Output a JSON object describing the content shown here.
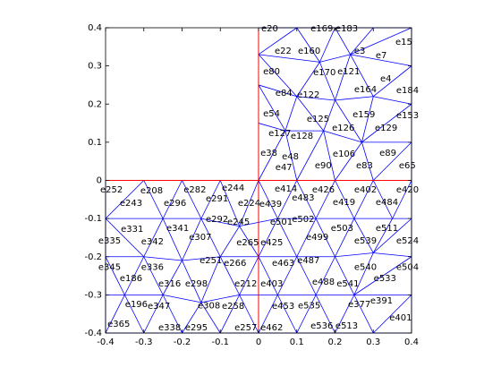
{
  "chart_data": {
    "type": "mesh",
    "xlim": [
      -0.4,
      0.4
    ],
    "ylim": [
      -0.4,
      0.4
    ],
    "xticks": [
      -0.4,
      -0.3,
      -0.2,
      -0.1,
      0,
      0.1,
      0.2,
      0.3,
      0.4
    ],
    "yticks": [
      -0.4,
      -0.3,
      -0.2,
      -0.1,
      0,
      0.1,
      0.2,
      0.3,
      0.4
    ],
    "mesh_color": "#0000ff",
    "boundary_color": "#ff0000",
    "boundary": [
      [
        0,
        0.4,
        0,
        -0.4
      ],
      [
        -0.4,
        0,
        0.4,
        0
      ]
    ],
    "mesh": [
      [
        [
          [
            0,
            0.4
          ],
          [
            0.1,
            0.4
          ],
          [
            0.2,
            0.4
          ],
          [
            0.3,
            0.4
          ],
          [
            0.4,
            0.4
          ]
        ],
        [
          [
            0,
            0.33
          ],
          [
            0.16,
            0.31
          ],
          [
            0.24,
            0.33
          ],
          [
            0.4,
            0.3
          ]
        ],
        [
          [
            0,
            0.25
          ],
          [
            0.1,
            0.22
          ],
          [
            0.2,
            0.21
          ],
          [
            0.3,
            0.22
          ],
          [
            0.4,
            0.2
          ]
        ],
        [
          [
            0,
            0.15
          ],
          [
            0.07,
            0.13
          ],
          [
            0.17,
            0.13
          ],
          [
            0.27,
            0.1
          ],
          [
            0.4,
            0.1
          ]
        ],
        [
          [
            0,
            0
          ],
          [
            0.1,
            0
          ],
          [
            0.2,
            0
          ],
          [
            0.3,
            0
          ],
          [
            0.4,
            0
          ]
        ]
      ],
      [
        [
          [
            -0.4,
            0
          ],
          [
            -0.3,
            0
          ],
          [
            -0.2,
            0
          ],
          [
            -0.1,
            0
          ],
          [
            0,
            0
          ],
          [
            0.1,
            0
          ],
          [
            0.2,
            0
          ],
          [
            0.3,
            0
          ],
          [
            0.4,
            0
          ]
        ],
        [
          [
            -0.4,
            -0.1
          ],
          [
            -0.25,
            -0.1
          ],
          [
            -0.15,
            -0.1
          ],
          [
            -0.05,
            -0.12
          ],
          [
            0.05,
            -0.1
          ],
          [
            0.15,
            -0.1
          ],
          [
            0.25,
            -0.1
          ],
          [
            0.35,
            -0.1
          ],
          [
            0.4,
            -0.1
          ]
        ],
        [
          [
            -0.4,
            -0.2
          ],
          [
            -0.3,
            -0.2
          ],
          [
            -0.2,
            -0.21
          ],
          [
            -0.1,
            -0.2
          ],
          [
            0,
            -0.2
          ],
          [
            0.1,
            -0.2
          ],
          [
            0.2,
            -0.2
          ],
          [
            0.3,
            -0.19
          ],
          [
            0.4,
            -0.2
          ]
        ],
        [
          [
            -0.4,
            -0.3
          ],
          [
            -0.35,
            -0.3
          ],
          [
            -0.25,
            -0.3
          ],
          [
            -0.15,
            -0.32
          ],
          [
            -0.05,
            -0.3
          ],
          [
            0.05,
            -0.3
          ],
          [
            0.15,
            -0.3
          ],
          [
            0.25,
            -0.3
          ],
          [
            0.4,
            -0.3
          ]
        ],
        [
          [
            -0.4,
            -0.4
          ],
          [
            -0.3,
            -0.4
          ],
          [
            -0.2,
            -0.4
          ],
          [
            -0.1,
            -0.4
          ],
          [
            0,
            -0.4
          ],
          [
            0.1,
            -0.4
          ],
          [
            0.2,
            -0.4
          ],
          [
            0.3,
            -0.4
          ],
          [
            0.4,
            -0.4
          ]
        ]
      ]
    ],
    "elements": [
      {
        "label": "e20",
        "x": 0.007,
        "y": 0.398
      },
      {
        "label": "e169",
        "x": 0.136,
        "y": 0.398
      },
      {
        "label": "e183",
        "x": 0.201,
        "y": 0.398
      },
      {
        "label": "e15",
        "x": 0.358,
        "y": 0.363
      },
      {
        "label": "e22",
        "x": 0.042,
        "y": 0.339
      },
      {
        "label": "e160",
        "x": 0.103,
        "y": 0.339
      },
      {
        "label": "e3",
        "x": 0.25,
        "y": 0.339
      },
      {
        "label": "e7",
        "x": 0.306,
        "y": 0.327
      },
      {
        "label": "e80",
        "x": 0.012,
        "y": 0.285
      },
      {
        "label": "e170",
        "x": 0.143,
        "y": 0.283
      },
      {
        "label": "e121",
        "x": 0.206,
        "y": 0.285
      },
      {
        "label": "e4",
        "x": 0.318,
        "y": 0.266
      },
      {
        "label": "e164",
        "x": 0.25,
        "y": 0.238
      },
      {
        "label": "e184",
        "x": 0.36,
        "y": 0.236
      },
      {
        "label": "e84",
        "x": 0.044,
        "y": 0.229
      },
      {
        "label": "e122",
        "x": 0.101,
        "y": 0.224
      },
      {
        "label": "e54",
        "x": 0.012,
        "y": 0.175
      },
      {
        "label": "e125",
        "x": 0.126,
        "y": 0.161
      },
      {
        "label": "e159",
        "x": 0.246,
        "y": 0.173
      },
      {
        "label": "e153",
        "x": 0.36,
        "y": 0.17
      },
      {
        "label": "e126",
        "x": 0.192,
        "y": 0.137
      },
      {
        "label": "e129",
        "x": 0.304,
        "y": 0.137
      },
      {
        "label": "e127",
        "x": 0.026,
        "y": 0.123
      },
      {
        "label": "e128",
        "x": 0.084,
        "y": 0.116
      },
      {
        "label": "e38",
        "x": 0.005,
        "y": 0.072
      },
      {
        "label": "e106",
        "x": 0.194,
        "y": 0.069
      },
      {
        "label": "e89",
        "x": 0.316,
        "y": 0.072
      },
      {
        "label": "e48",
        "x": 0.061,
        "y": 0.062
      },
      {
        "label": "e47",
        "x": 0.044,
        "y": 0.034
      },
      {
        "label": "e90",
        "x": 0.147,
        "y": 0.039
      },
      {
        "label": "e83",
        "x": 0.255,
        "y": 0.039
      },
      {
        "label": "e65",
        "x": 0.367,
        "y": 0.039
      },
      {
        "label": "e252",
        "x": -0.414,
        "y": -0.025
      },
      {
        "label": "e208",
        "x": -0.309,
        "y": -0.027
      },
      {
        "label": "e282",
        "x": -0.196,
        "y": -0.025
      },
      {
        "label": "e244",
        "x": -0.096,
        "y": -0.02
      },
      {
        "label": "e414",
        "x": 0.042,
        "y": -0.022
      },
      {
        "label": "e426",
        "x": 0.14,
        "y": -0.025
      },
      {
        "label": "e402",
        "x": 0.25,
        "y": -0.025
      },
      {
        "label": "e420",
        "x": 0.36,
        "y": -0.025
      },
      {
        "label": "e291",
        "x": -0.138,
        "y": -0.048
      },
      {
        "label": "e483",
        "x": 0.087,
        "y": -0.046
      },
      {
        "label": "e243",
        "x": -0.363,
        "y": -0.06
      },
      {
        "label": "e296",
        "x": -0.248,
        "y": -0.06
      },
      {
        "label": "e224",
        "x": -0.054,
        "y": -0.06
      },
      {
        "label": "e439",
        "x": 0.002,
        "y": -0.062
      },
      {
        "label": "e419",
        "x": 0.194,
        "y": -0.058
      },
      {
        "label": "e484",
        "x": 0.306,
        "y": -0.058
      },
      {
        "label": "e292",
        "x": -0.138,
        "y": -0.102
      },
      {
        "label": "e245",
        "x": -0.082,
        "y": -0.109
      },
      {
        "label": "e501",
        "x": 0.03,
        "y": -0.109
      },
      {
        "label": "e502",
        "x": 0.087,
        "y": -0.102
      },
      {
        "label": "e331",
        "x": -0.36,
        "y": -0.128
      },
      {
        "label": "e341",
        "x": -0.241,
        "y": -0.126
      },
      {
        "label": "e503",
        "x": 0.189,
        "y": -0.126
      },
      {
        "label": "e511",
        "x": 0.306,
        "y": -0.126
      },
      {
        "label": "e307",
        "x": -0.182,
        "y": -0.149
      },
      {
        "label": "e499",
        "x": 0.124,
        "y": -0.149
      },
      {
        "label": "e539",
        "x": 0.25,
        "y": -0.158
      },
      {
        "label": "e524",
        "x": 0.36,
        "y": -0.158
      },
      {
        "label": "e335",
        "x": -0.419,
        "y": -0.158
      },
      {
        "label": "e342",
        "x": -0.307,
        "y": -0.161
      },
      {
        "label": "e265",
        "x": -0.058,
        "y": -0.163
      },
      {
        "label": "e425",
        "x": 0.005,
        "y": -0.163
      },
      {
        "label": "e251",
        "x": -0.154,
        "y": -0.21
      },
      {
        "label": "e266",
        "x": -0.091,
        "y": -0.217
      },
      {
        "label": "e463",
        "x": 0.035,
        "y": -0.217
      },
      {
        "label": "e487",
        "x": 0.101,
        "y": -0.21
      },
      {
        "label": "e540",
        "x": 0.25,
        "y": -0.227
      },
      {
        "label": "e504",
        "x": 0.36,
        "y": -0.227
      },
      {
        "label": "e345",
        "x": -0.419,
        "y": -0.227
      },
      {
        "label": "e336",
        "x": -0.307,
        "y": -0.227
      },
      {
        "label": "e186",
        "x": -0.363,
        "y": -0.257
      },
      {
        "label": "e533",
        "x": 0.301,
        "y": -0.257
      },
      {
        "label": "e316",
        "x": -0.262,
        "y": -0.271
      },
      {
        "label": "e298",
        "x": -0.192,
        "y": -0.271
      },
      {
        "label": "e212",
        "x": -0.063,
        "y": -0.271
      },
      {
        "label": "e403",
        "x": 0.005,
        "y": -0.271
      },
      {
        "label": "e488",
        "x": 0.14,
        "y": -0.266
      },
      {
        "label": "e541",
        "x": 0.204,
        "y": -0.271
      },
      {
        "label": "e391",
        "x": 0.292,
        "y": -0.316
      },
      {
        "label": "e377",
        "x": 0.234,
        "y": -0.325
      },
      {
        "label": "e196",
        "x": -0.349,
        "y": -0.325
      },
      {
        "label": "e347",
        "x": -0.29,
        "y": -0.33
      },
      {
        "label": "e308",
        "x": -0.159,
        "y": -0.328
      },
      {
        "label": "e258",
        "x": -0.096,
        "y": -0.33
      },
      {
        "label": "e453",
        "x": 0.035,
        "y": -0.33
      },
      {
        "label": "e535",
        "x": 0.103,
        "y": -0.328
      },
      {
        "label": "e401",
        "x": 0.342,
        "y": -0.36
      },
      {
        "label": "e365",
        "x": -0.395,
        "y": -0.377
      },
      {
        "label": "e338",
        "x": -0.262,
        "y": -0.386
      },
      {
        "label": "e295",
        "x": -0.192,
        "y": -0.386
      },
      {
        "label": "e257",
        "x": -0.063,
        "y": -0.386
      },
      {
        "label": "e462",
        "x": 0.005,
        "y": -0.386
      },
      {
        "label": "e536",
        "x": 0.136,
        "y": -0.381
      },
      {
        "label": "e513",
        "x": 0.201,
        "y": -0.381
      }
    ]
  }
}
